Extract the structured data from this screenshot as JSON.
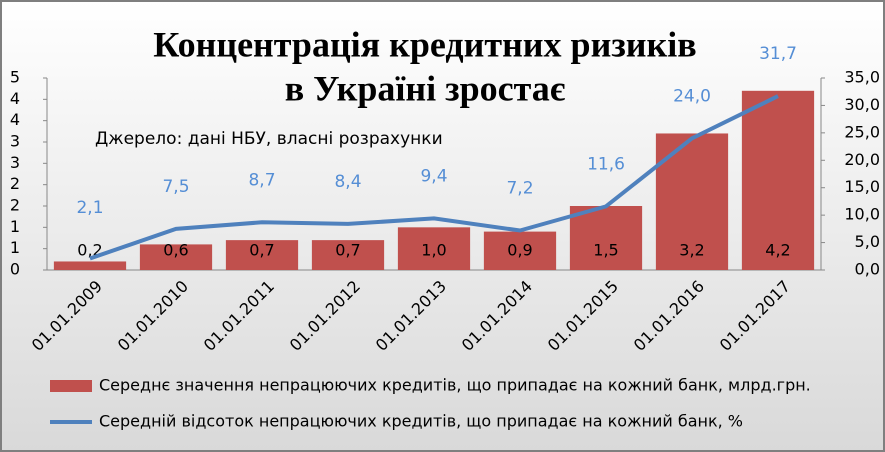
{
  "chart_data": {
    "type": "bar_line",
    "title": [
      "Концентрація кредитних ризиків",
      "в Україні зростає"
    ],
    "annotation": "Джерело: дані НБУ, власні розрахунки",
    "categories": [
      "01.01.2009",
      "01.01.2010",
      "01.01.2011",
      "01.01.2012",
      "01.01.2013",
      "01.01.2014",
      "01.01.2015",
      "01.01.2016",
      "01.01.2017"
    ],
    "series": [
      {
        "name": "Середнє значення непрацюючих кредитів, що припадає на кожний банк, млрд.грн.",
        "type": "bar",
        "color": "#c0504d",
        "values": [
          0.2,
          0.6,
          0.7,
          0.7,
          1.0,
          0.9,
          1.5,
          3.2,
          4.2
        ],
        "value_labels": [
          "0,2",
          "0,6",
          "0,7",
          "0,7",
          "1,0",
          "0,9",
          "1,5",
          "3,2",
          "4,2"
        ]
      },
      {
        "name": "Середній відсоток непрацюючих кредитів, що припадає на кожний банк, %",
        "type": "line",
        "axis": "y2",
        "color": "#4f81bd",
        "values": [
          2.1,
          7.5,
          8.7,
          8.4,
          9.4,
          7.2,
          11.6,
          24.0,
          31.7
        ],
        "value_labels": [
          "2,1",
          "7,5",
          "8,7",
          "8,4",
          "9,4",
          "7,2",
          "11,6",
          "24,0",
          "31,7"
        ]
      }
    ],
    "ylim": [
      0,
      4.5
    ],
    "yticks": [
      0,
      {
        "value": 0.5,
        "label": "1"
      },
      1,
      {
        "value": 1.5,
        "label": "2"
      },
      2,
      {
        "value": 2.5,
        "label": "3"
      },
      3,
      {
        "value": 3.5,
        "label": "4"
      },
      4,
      {
        "value": 4.5,
        "label": "5"
      }
    ],
    "y2lim": [
      0,
      35
    ],
    "y2ticks": [
      {
        "value": 0,
        "label": "0,0"
      },
      {
        "value": 5,
        "label": "5,0"
      },
      {
        "value": 10,
        "label": "10,0"
      },
      {
        "value": 15,
        "label": "15,0"
      },
      {
        "value": 20,
        "label": "20,0"
      },
      {
        "value": 25,
        "label": "25,0"
      },
      {
        "value": 30,
        "label": "30,0"
      },
      {
        "value": 35,
        "label": "35,0"
      }
    ],
    "legend": "bottom"
  }
}
